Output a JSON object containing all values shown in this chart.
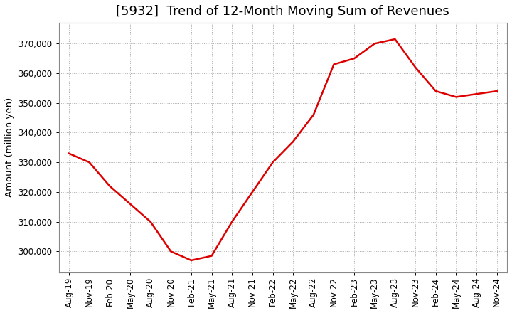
{
  "title": "[5932]  Trend of 12-Month Moving Sum of Revenues",
  "ylabel": "Amount (million yen)",
  "line_color": "#dd0000",
  "background_color": "#ffffff",
  "plot_bg_color": "#ffffff",
  "grid_color": "#aaaaaa",
  "x_labels": [
    "Aug-19",
    "Nov-19",
    "Feb-20",
    "May-20",
    "Aug-20",
    "Nov-20",
    "Feb-21",
    "May-21",
    "Aug-21",
    "Nov-21",
    "Feb-22",
    "May-22",
    "Aug-22",
    "Nov-22",
    "Feb-23",
    "May-23",
    "Aug-23",
    "Nov-23",
    "Feb-24",
    "May-24",
    "Aug-24",
    "Nov-24"
  ],
  "values": [
    333000,
    330000,
    322000,
    316000,
    310000,
    300000,
    297000,
    298500,
    310000,
    320000,
    330000,
    337000,
    346000,
    363000,
    365000,
    370000,
    371500,
    362000,
    354000,
    352000,
    353000,
    354000
  ],
  "ylim": [
    293000,
    377000
  ],
  "yticks": [
    300000,
    310000,
    320000,
    330000,
    340000,
    350000,
    360000,
    370000
  ],
  "title_fontsize": 13,
  "label_fontsize": 9.5,
  "tick_fontsize": 8.5
}
